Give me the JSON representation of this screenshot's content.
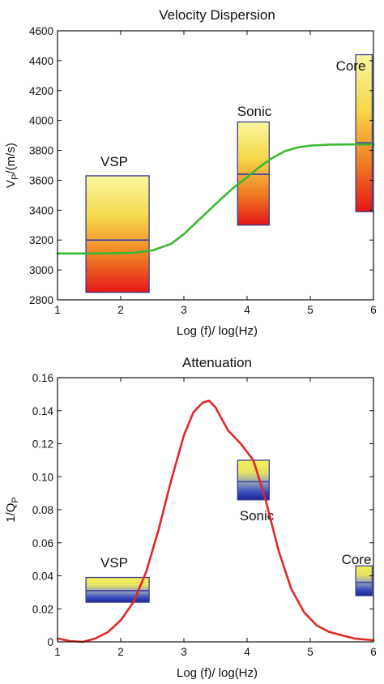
{
  "chart_data": [
    {
      "type": "line",
      "title": "Velocity Dispersion",
      "xlabel": "Log (f)/ log(Hz)",
      "ylabel": {
        "base": "V",
        "sub": "P",
        "rest": "/(m/s)"
      },
      "xlim": [
        1,
        6
      ],
      "ylim": [
        2800,
        4600
      ],
      "xticks": [
        1,
        2,
        3,
        4,
        5,
        6
      ],
      "yticks": [
        2800,
        3000,
        3200,
        3400,
        3600,
        3800,
        4000,
        4200,
        4400,
        4600
      ],
      "grid": false,
      "series": [
        {
          "color": "#3cb832",
          "x": [
            1.0,
            1.4,
            1.8,
            2.2,
            2.5,
            2.8,
            3.0,
            3.2,
            3.4,
            3.6,
            3.8,
            4.0,
            4.2,
            4.4,
            4.6,
            4.8,
            5.0,
            5.3,
            5.6,
            6.0
          ],
          "y": [
            3110,
            3110,
            3111,
            3115,
            3130,
            3175,
            3240,
            3320,
            3400,
            3480,
            3555,
            3620,
            3690,
            3750,
            3795,
            3820,
            3832,
            3838,
            3840,
            3840
          ]
        }
      ],
      "ranges": [
        {
          "label": "VSP",
          "x0": 1.45,
          "x1": 2.45,
          "y0": 2850,
          "y1": 3630,
          "mid": 3200,
          "fill": "warm"
        },
        {
          "label": "Sonic",
          "x0": 3.85,
          "x1": 4.35,
          "y0": 3300,
          "y1": 3990,
          "mid": 3640,
          "fill": "warm"
        },
        {
          "label": "Core",
          "x0": 5.72,
          "x1": 5.98,
          "y0": 3390,
          "y1": 4440,
          "mid": 3850,
          "fill": "warm"
        }
      ]
    },
    {
      "type": "line",
      "title": "Attenuation",
      "xlabel": "Log (f)/ log(Hz)",
      "ylabel": {
        "base": "1/Q",
        "sub": "P",
        "rest": ""
      },
      "xlim": [
        1,
        6
      ],
      "ylim": [
        0,
        0.16
      ],
      "xticks": [
        1,
        2,
        3,
        4,
        5,
        6
      ],
      "yticks": [
        0,
        0.02,
        0.04,
        0.06,
        0.08,
        0.1,
        0.12,
        0.14,
        0.16
      ],
      "ytick_labels": [
        "0",
        "0.02",
        "0.04",
        "0.06",
        "0.08",
        "0.10",
        "0.12",
        "0.14",
        "0.16"
      ],
      "grid": false,
      "series": [
        {
          "color": "#e02828",
          "x": [
            1.0,
            1.2,
            1.4,
            1.6,
            1.8,
            2.0,
            2.2,
            2.4,
            2.6,
            2.8,
            3.0,
            3.15,
            3.3,
            3.4,
            3.5,
            3.7,
            3.9,
            4.1,
            4.3,
            4.5,
            4.7,
            4.9,
            5.1,
            5.3,
            5.5,
            5.7,
            6.0
          ],
          "y": [
            0.002,
            0.0005,
            0.0,
            0.002,
            0.006,
            0.013,
            0.024,
            0.042,
            0.068,
            0.098,
            0.125,
            0.139,
            0.145,
            0.146,
            0.142,
            0.128,
            0.12,
            0.11,
            0.085,
            0.055,
            0.032,
            0.018,
            0.01,
            0.006,
            0.004,
            0.002,
            0.001
          ]
        }
      ],
      "ranges": [
        {
          "label": "VSP",
          "x0": 1.45,
          "x1": 2.45,
          "y0": 0.024,
          "y1": 0.039,
          "mid": 0.031,
          "fill": "cool"
        },
        {
          "label": "Sonic",
          "x0": 3.85,
          "x1": 4.35,
          "y0": 0.086,
          "y1": 0.11,
          "mid": 0.097,
          "fill": "cool"
        },
        {
          "label": "Core",
          "x0": 5.72,
          "x1": 5.98,
          "y0": 0.028,
          "y1": 0.046,
          "mid": 0.036,
          "fill": "cool"
        }
      ]
    }
  ]
}
